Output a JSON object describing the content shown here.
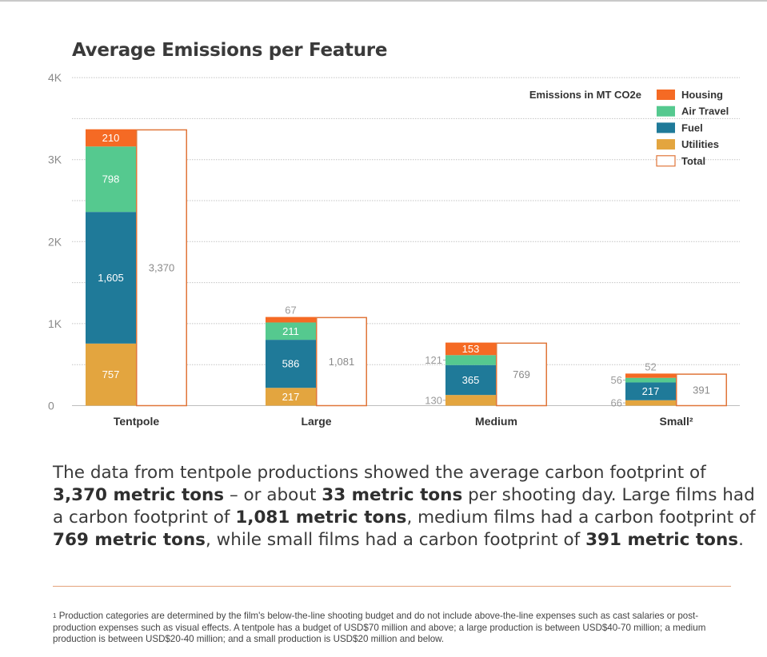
{
  "chart_data": {
    "type": "bar",
    "title": "Average Emissions per Feature",
    "legend_title": "Emissions in MT CO2e",
    "legend_position": "top-right",
    "grid": true,
    "ylim": [
      0,
      4000
    ],
    "yticks": [
      {
        "value": 0,
        "label": "0"
      },
      {
        "value": 1000,
        "label": "1K"
      },
      {
        "value": 2000,
        "label": "2K"
      },
      {
        "value": 3000,
        "label": "3K"
      },
      {
        "value": 4000,
        "label": "4K"
      }
    ],
    "categories": [
      "Tentpole",
      "Large",
      "Medium",
      "Small²"
    ],
    "series": [
      {
        "name": "Utilities",
        "color": "#e3a53f",
        "values": [
          757,
          217,
          130,
          66
        ],
        "labels": [
          "757",
          "217",
          "130",
          "66"
        ]
      },
      {
        "name": "Fuel",
        "color": "#1f7a99",
        "values": [
          1605,
          586,
          365,
          217
        ],
        "labels": [
          "1,605",
          "586",
          "365",
          "217"
        ]
      },
      {
        "name": "Air Travel",
        "color": "#55c98f",
        "values": [
          798,
          211,
          121,
          56
        ],
        "labels": [
          "798",
          "211",
          "121",
          "56"
        ]
      },
      {
        "name": "Housing",
        "color": "#f56a24",
        "values": [
          210,
          67,
          153,
          52
        ],
        "labels": [
          "210",
          "67",
          "153",
          "52"
        ]
      }
    ],
    "totals": {
      "name": "Total",
      "edge_color": "#e0763a",
      "values": [
        3370,
        1081,
        769,
        391
      ],
      "labels": [
        "3,370",
        "1,081",
        "769",
        "391"
      ]
    }
  },
  "summary": {
    "p1": "The data from tentpole productions showed the average carbon footprint of ",
    "b1": "3,370 metric tons",
    "p2": " – or about ",
    "b2": "33 metric tons",
    "p3": " per shooting day. Large films had a carbon footprint of ",
    "b3": "1,081 metric tons",
    "p4": ", medium films had a carbon footprint of ",
    "b4": "769 metric tons",
    "p5": ", while small films had a carbon footprint of ",
    "b5": "391 metric tons",
    "p6": "."
  },
  "footnote": {
    "marker": "1",
    "text": "Production categories are determined by the film's below-the-line shooting budget and do not include above-the-line expenses such as cast salaries or post-production expenses such as visual effects. A tentpole has a budget of USD$70 million and above; a large production is between USD$40-70 million; a medium production is between USD$20-40 million; and a small production is USD$20 million and below."
  }
}
